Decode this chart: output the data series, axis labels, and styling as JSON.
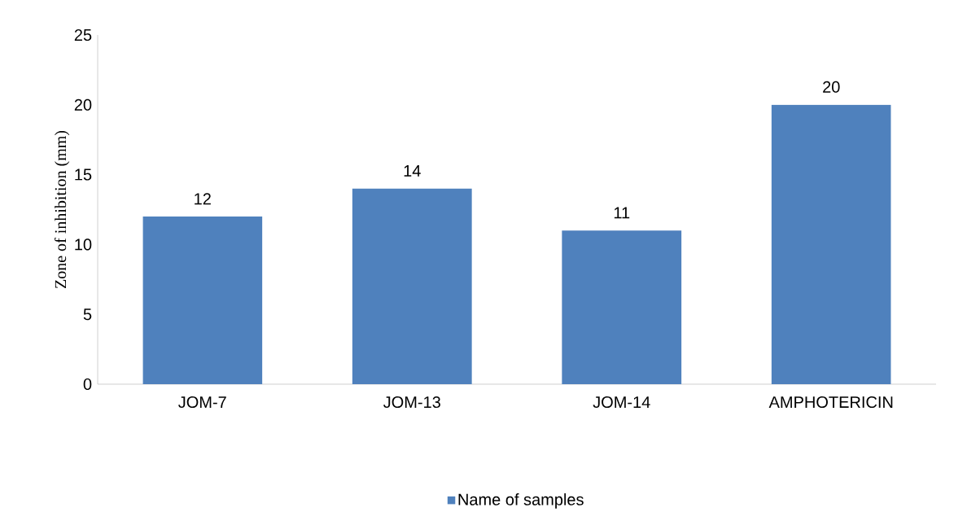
{
  "chart_data": {
    "type": "bar",
    "ylabel": "Zone of inhibition (mm)",
    "categories": [
      "JOM-7",
      "JOM-13",
      "JOM-14",
      "AMPHOTERICIN"
    ],
    "series": [
      {
        "name": "Name of samples",
        "color": "#4f81bd",
        "values": [
          12,
          14,
          11,
          20
        ]
      }
    ],
    "ylim": [
      0,
      25
    ],
    "yticks": [
      0,
      5,
      10,
      15,
      20,
      25
    ],
    "data_labels": true,
    "legend": "bottom"
  }
}
